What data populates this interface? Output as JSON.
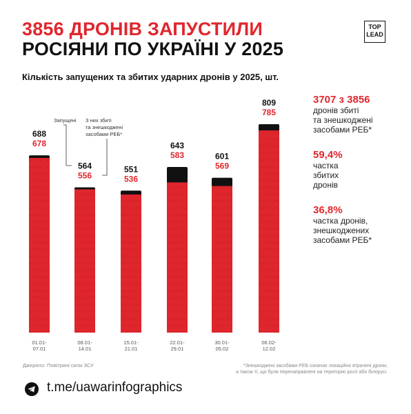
{
  "header": {
    "title_line1": "3856 ДРОНІВ ЗАПУСТИЛИ",
    "title_line2": "РОСІЯНИ ПО УКРАЇНІ У 2025",
    "logo_top": "TOP",
    "logo_bottom": "LEAD",
    "subtitle": "Кількість запущених та збитих ударних дронів у 2025, шт."
  },
  "chart_data": {
    "type": "bar",
    "categories": [
      "01.01-\n07.01",
      "08.01-\n14.01",
      "15.01-\n21.01",
      "22.01-\n29.01",
      "30.01-\n05.02",
      "06.02-\n12.02"
    ],
    "category_labels": [
      [
        "01.01-",
        "07.01"
      ],
      [
        "08.01-",
        "14.01"
      ],
      [
        "15.01-",
        "21.01"
      ],
      [
        "22.01-",
        "29.01"
      ],
      [
        "30.01-",
        "05.02"
      ],
      [
        "06.02-",
        "12.02"
      ]
    ],
    "series": [
      {
        "name": "Запущені",
        "values": [
          688,
          564,
          551,
          643,
          601,
          809
        ],
        "color": "#111111"
      },
      {
        "name": "З них збиті та знешкоджені засобами РЕБ*",
        "values": [
          678,
          556,
          536,
          583,
          569,
          785
        ],
        "color": "#e0262d"
      }
    ],
    "ylim": [
      0,
      830
    ],
    "annotations": {
      "launched": "Запущені",
      "shot_down": [
        "З них збиті",
        "та знешкоджені",
        "засобами РЕБ*"
      ]
    }
  },
  "stats": [
    {
      "big": "3707 з 3856",
      "desc": [
        "дронів збиті",
        "та знешкоджені",
        "засобами РЕБ*"
      ]
    },
    {
      "big": "59,4%",
      "desc": [
        "частка",
        "збитих",
        "дронів"
      ]
    },
    {
      "big": "36,8%",
      "desc": [
        "частка дронів,",
        "знешкоджених",
        "засобами РЕБ*"
      ]
    }
  ],
  "footer": {
    "source": "Джерело: Повітряні сили ЗСУ",
    "footnote_line1": "*Знешкоджені засобами РЕБ означає локаційно втрачені дрони,",
    "footnote_line2": "а також ті, що були перенаправлені на територію росії або білорусі.",
    "telegram": "t.me/uawarinfographics"
  },
  "colors": {
    "accent": "#e0262d",
    "dark": "#111111"
  }
}
